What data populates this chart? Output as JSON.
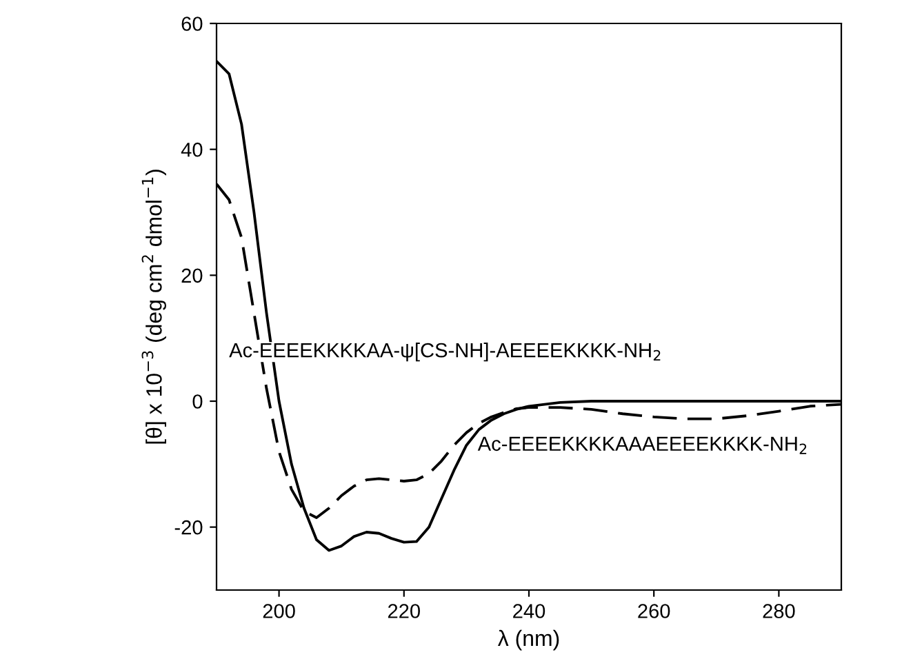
{
  "chart_data": {
    "type": "line",
    "xlabel": "λ (nm)",
    "ylabel": "[θ] x 10$^{−3}$ (deg cm$^{2}$ dmol$^{−1}$)",
    "xlim": [
      190,
      290
    ],
    "xticks": [
      200,
      220,
      240,
      260,
      280
    ],
    "ylim": [
      -30,
      60
    ],
    "yticks": [
      -20,
      0,
      20,
      40,
      60
    ],
    "grid": false,
    "legend": false,
    "series": [
      {
        "name": "Ac-EEEEKKKKAA-ψ[CS-NH]-AEEEEKKKK-NH$_{2}$",
        "color": "#000000",
        "line_style": "dashed",
        "x": [
          190,
          192,
          194,
          196,
          198,
          200,
          202,
          204,
          206,
          208,
          210,
          212,
          214,
          216,
          218,
          220,
          222,
          224,
          226,
          228,
          230,
          232,
          234,
          236,
          238,
          240,
          245,
          250,
          255,
          260,
          265,
          270,
          275,
          280,
          285,
          290
        ],
        "values": [
          34.5,
          32,
          26,
          14,
          2,
          -8,
          -14,
          -17.5,
          -18.5,
          -17,
          -15,
          -13.5,
          -12.5,
          -12.3,
          -12.5,
          -12.7,
          -12.5,
          -11.5,
          -9.5,
          -7,
          -5,
          -3.5,
          -2.5,
          -1.8,
          -1.2,
          -1,
          -1,
          -1.3,
          -2,
          -2.5,
          -2.8,
          -2.8,
          -2.3,
          -1.6,
          -0.8,
          -0.5
        ]
      },
      {
        "name": "Ac-EEEEKKKKAAAEEEEKKKK-NH$_{2}$",
        "color": "#000000",
        "line_style": "solid",
        "x": [
          190,
          192,
          194,
          196,
          198,
          200,
          202,
          204,
          206,
          208,
          210,
          212,
          214,
          216,
          218,
          220,
          222,
          224,
          226,
          228,
          230,
          232,
          234,
          236,
          238,
          240,
          245,
          250,
          260,
          270,
          280,
          290
        ],
        "values": [
          54,
          52,
          44,
          30,
          14,
          0,
          -10,
          -17,
          -22,
          -23.7,
          -23,
          -21.5,
          -20.8,
          -21,
          -21.8,
          -22.4,
          -22.3,
          -20,
          -15.5,
          -11,
          -7,
          -4.5,
          -3,
          -2,
          -1.3,
          -0.8,
          -0.2,
          0,
          0,
          0,
          0,
          0
        ]
      }
    ]
  }
}
